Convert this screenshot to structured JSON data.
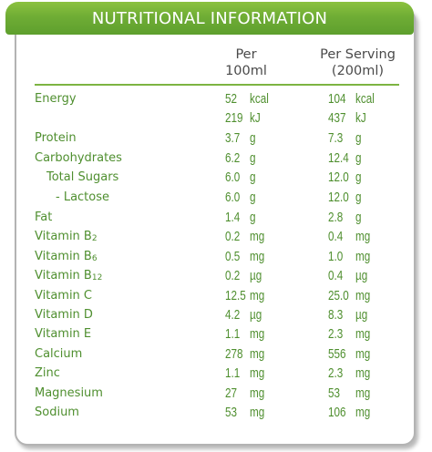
{
  "title": "NUTRITIONAL INFORMATION",
  "headers": {
    "per_100ml": [
      "Per",
      "100ml"
    ],
    "per_serving": [
      "Per Serving",
      "(200ml)"
    ]
  },
  "colors": {
    "accent": "#6fad35",
    "text": "#4f8f2f",
    "border": "#b3b3b3"
  },
  "rows": [
    {
      "label": "Energy",
      "v1": "52",
      "u1": "kcal",
      "v2": "104",
      "u2": "kcal"
    },
    {
      "label": "",
      "v1": "219",
      "u1": "kJ",
      "v2": "437",
      "u2": "kJ"
    },
    {
      "label": "Protein",
      "v1": "3.7",
      "u1": "g",
      "v2": "7.3",
      "u2": "g"
    },
    {
      "label": "Carbohydrates",
      "v1": "6.2",
      "u1": "g",
      "v2": "12.4",
      "u2": "g"
    },
    {
      "label": "Total Sugars",
      "v1": "6.0",
      "u1": "g",
      "v2": "12.0",
      "u2": "g"
    },
    {
      "label": "- Lactose",
      "v1": "6.0",
      "u1": "g",
      "v2": "12.0",
      "u2": "g"
    },
    {
      "label": "Fat",
      "v1": "1.4",
      "u1": "g",
      "v2": "2.8",
      "u2": "g"
    },
    {
      "label": "Vitamin B",
      "sub": "2",
      "v1": "0.2",
      "u1": "mg",
      "v2": "0.4",
      "u2": "mg"
    },
    {
      "label": "Vitamin B",
      "sub": "6",
      "v1": "0.5",
      "u1": "mg",
      "v2": "1.0",
      "u2": "mg"
    },
    {
      "label": "Vitamin B",
      "sub": "12",
      "v1": "0.2",
      "u1": "µg",
      "v2": "0.4",
      "u2": "µg"
    },
    {
      "label": "Vitamin C",
      "v1": "12.5",
      "u1": "mg",
      "v2": "25.0",
      "u2": "mg"
    },
    {
      "label": "Vitamin D",
      "v1": "4.2",
      "u1": "µg",
      "v2": "8.3",
      "u2": "µg"
    },
    {
      "label": "Vitamin E",
      "v1": "1.1",
      "u1": "mg",
      "v2": "2.3",
      "u2": "mg"
    },
    {
      "label": "Calcium",
      "v1": "278",
      "u1": "mg",
      "v2": "556",
      "u2": "mg"
    },
    {
      "label": "Zinc",
      "v1": "1.1",
      "u1": "mg",
      "v2": "2.3",
      "u2": "mg"
    },
    {
      "label": "Magnesium",
      "v1": "27",
      "u1": "mg",
      "v2": "53",
      "u2": "mg"
    },
    {
      "label": "Sodium",
      "v1": "53",
      "u1": "mg",
      "v2": "106",
      "u2": "mg"
    }
  ]
}
